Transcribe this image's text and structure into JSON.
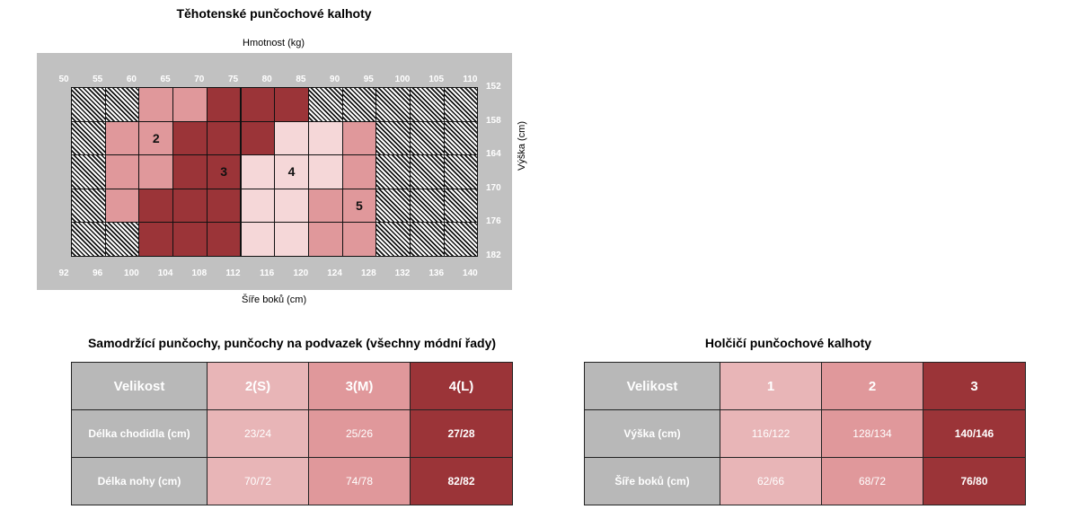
{
  "chart": {
    "title": "Těhotenské punčochové kalhoty",
    "top_axis_label": "Hmotnost (kg)",
    "bottom_axis_label": "Šíře boků (cm)",
    "right_axis_label": "Výška (cm)",
    "weight_ticks": [
      "50",
      "55",
      "60",
      "65",
      "70",
      "75",
      "80",
      "85",
      "90",
      "95",
      "100",
      "105",
      "110"
    ],
    "hip_ticks": [
      "92",
      "96",
      "100",
      "104",
      "108",
      "112",
      "116",
      "120",
      "124",
      "128",
      "132",
      "136",
      "140"
    ],
    "height_ticks": [
      "152",
      "158",
      "164",
      "170",
      "176",
      "182"
    ],
    "size_labels": {
      "s2": "2",
      "s3": "3",
      "s4": "4",
      "s5": "5"
    },
    "colors": {
      "size2": "#e0989b",
      "size3": "#9b3438",
      "size4": "#f5d7d8",
      "size5": "#e0989b",
      "na": "hatched",
      "panel": "#c1c1c1"
    },
    "grid": [
      [
        "na",
        "na",
        "2",
        "2",
        "3",
        "3",
        "3",
        "na",
        "na",
        "na",
        "na",
        "na"
      ],
      [
        "na",
        "2",
        "2",
        "3",
        "3",
        "3",
        "4",
        "4",
        "5",
        "na",
        "na",
        "na"
      ],
      [
        "na",
        "2",
        "2",
        "3",
        "3",
        "4",
        "4",
        "4",
        "5",
        "na",
        "na",
        "na"
      ],
      [
        "na",
        "2",
        "3",
        "3",
        "3",
        "4",
        "4",
        "5",
        "5",
        "na",
        "na",
        "na"
      ],
      [
        "na",
        "na",
        "3",
        "3",
        "3",
        "4",
        "4",
        "5",
        "5",
        "na",
        "na",
        "na"
      ]
    ]
  },
  "stockings": {
    "title": "Samodržící punčochy, punčochy na podvazek (všechny módní řady)",
    "header": [
      "Velikost",
      "2(S)",
      "3(M)",
      "4(L)"
    ],
    "rows": [
      {
        "label": "Délka chodidla (cm)",
        "values": [
          "23/24",
          "25/26",
          "27/28"
        ]
      },
      {
        "label": "Délka nohy (cm)",
        "values": [
          "70/72",
          "74/78",
          "82/82"
        ]
      }
    ],
    "colors": [
      "#e8b5b7",
      "#e0989b",
      "#9b3438"
    ]
  },
  "tights": {
    "title": "Holčičí punčochové kalhoty",
    "header": [
      "Velikost",
      "1",
      "2",
      "3"
    ],
    "rows": [
      {
        "label": "Výška (cm)",
        "values": [
          "116/122",
          "128/134",
          "140/146"
        ]
      },
      {
        "label": "Šíře boků (cm)",
        "values": [
          "62/66",
          "68/72",
          "76/80"
        ]
      }
    ],
    "colors": [
      "#e8b5b7",
      "#e0989b",
      "#9b3438"
    ]
  }
}
